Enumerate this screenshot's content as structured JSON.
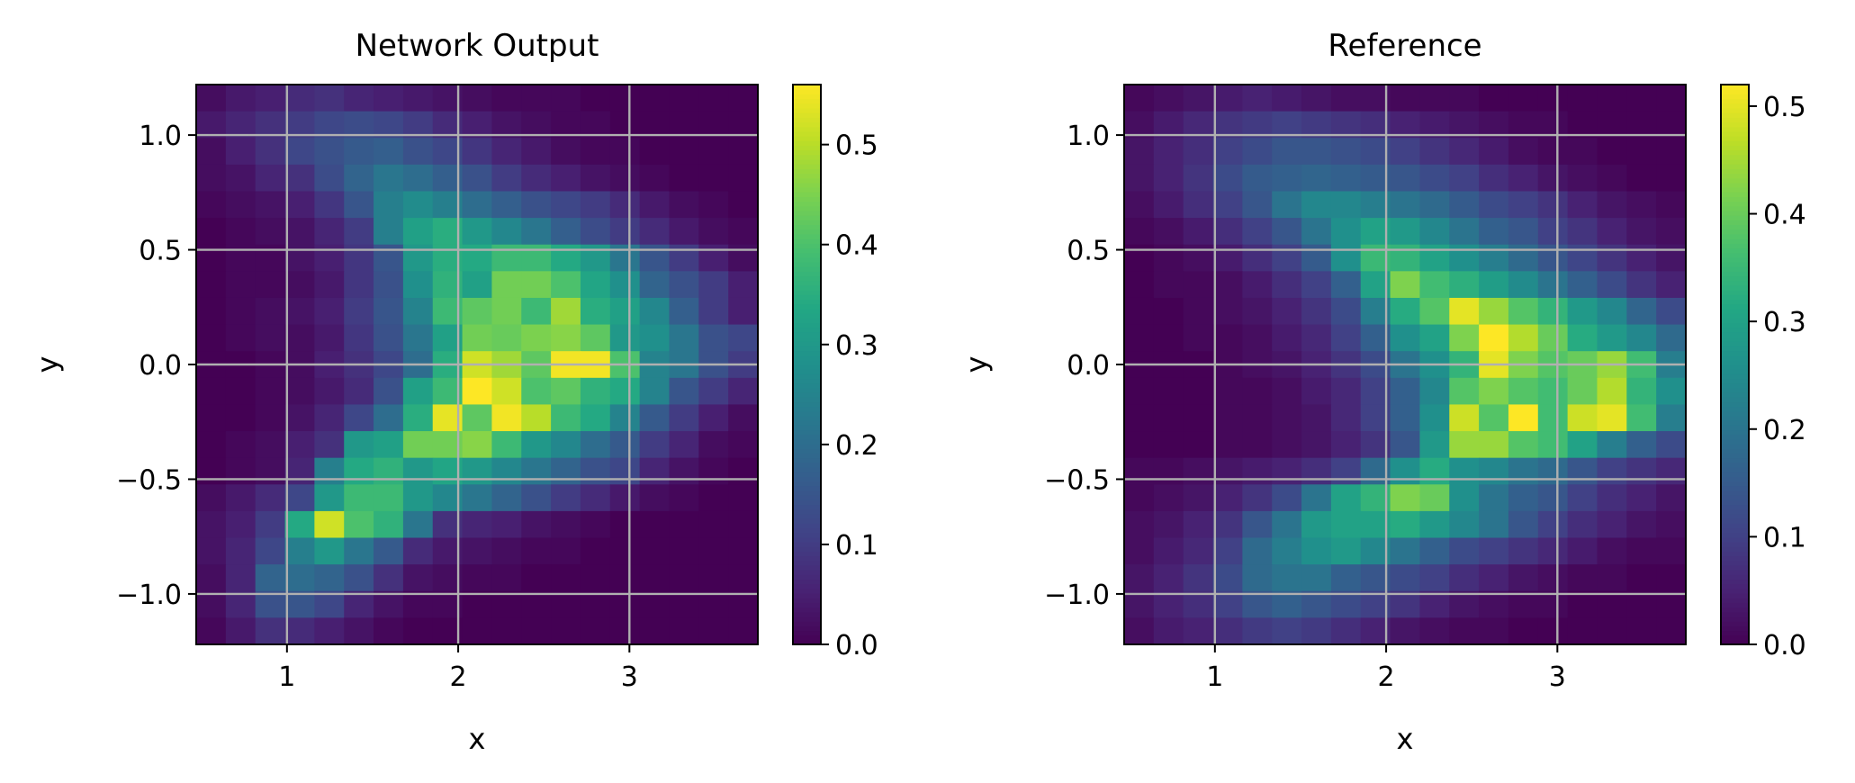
{
  "chart_data": [
    {
      "type": "heatmap",
      "title": "Network Output",
      "xlabel": "x",
      "ylabel": "y",
      "xlim": [
        0.47,
        3.75
      ],
      "ylim": [
        -1.22,
        1.22
      ],
      "xticks": [
        {
          "v": 1,
          "label": "1"
        },
        {
          "v": 2,
          "label": "2"
        },
        {
          "v": 3,
          "label": "3"
        }
      ],
      "yticks": [
        {
          "v": 1.0,
          "label": "1.0"
        },
        {
          "v": 0.5,
          "label": "0.5"
        },
        {
          "v": 0.0,
          "label": "0.0"
        },
        {
          "v": -0.5,
          "label": "−0.5"
        },
        {
          "v": -1.0,
          "label": "−1.0"
        }
      ],
      "grid": true,
      "colormap": "viridis",
      "colorbar": {
        "vmin": 0.0,
        "vmax": 0.56,
        "ticks": [
          {
            "v": 0.0,
            "label": "0.0"
          },
          {
            "v": 0.1,
            "label": "0.1"
          },
          {
            "v": 0.2,
            "label": "0.2"
          },
          {
            "v": 0.3,
            "label": "0.3"
          },
          {
            "v": 0.4,
            "label": "0.4"
          },
          {
            "v": 0.5,
            "label": "0.5"
          }
        ]
      },
      "rows_top_to_bottom": [
        [
          0.02,
          0.04,
          0.05,
          0.07,
          0.08,
          0.06,
          0.05,
          0.04,
          0.03,
          0.02,
          0.01,
          0.01,
          0.01,
          0.0,
          0.0,
          0.0,
          0.0,
          0.0,
          0.0
        ],
        [
          0.04,
          0.06,
          0.08,
          0.1,
          0.12,
          0.13,
          0.12,
          0.1,
          0.07,
          0.05,
          0.03,
          0.02,
          0.01,
          0.01,
          0.0,
          0.0,
          0.0,
          0.0,
          0.0
        ],
        [
          0.02,
          0.05,
          0.08,
          0.12,
          0.14,
          0.16,
          0.17,
          0.14,
          0.12,
          0.09,
          0.06,
          0.04,
          0.02,
          0.01,
          0.01,
          0.0,
          0.0,
          0.0,
          0.0
        ],
        [
          0.02,
          0.03,
          0.06,
          0.08,
          0.13,
          0.18,
          0.22,
          0.2,
          0.17,
          0.14,
          0.1,
          0.07,
          0.05,
          0.03,
          0.02,
          0.01,
          0.0,
          0.0,
          0.0
        ],
        [
          0.01,
          0.02,
          0.03,
          0.05,
          0.09,
          0.15,
          0.24,
          0.27,
          0.24,
          0.2,
          0.17,
          0.14,
          0.12,
          0.1,
          0.07,
          0.04,
          0.02,
          0.01,
          0.0
        ],
        [
          0.0,
          0.01,
          0.02,
          0.03,
          0.06,
          0.1,
          0.24,
          0.32,
          0.35,
          0.3,
          0.26,
          0.22,
          0.17,
          0.13,
          0.1,
          0.07,
          0.04,
          0.02,
          0.01
        ],
        [
          0.0,
          0.01,
          0.01,
          0.03,
          0.05,
          0.09,
          0.15,
          0.3,
          0.35,
          0.34,
          0.38,
          0.38,
          0.34,
          0.3,
          0.22,
          0.15,
          0.1,
          0.05,
          0.02
        ],
        [
          0.0,
          0.01,
          0.01,
          0.02,
          0.04,
          0.09,
          0.14,
          0.28,
          0.36,
          0.32,
          0.44,
          0.44,
          0.4,
          0.33,
          0.28,
          0.18,
          0.14,
          0.1,
          0.05
        ],
        [
          0.0,
          0.01,
          0.02,
          0.03,
          0.05,
          0.1,
          0.15,
          0.25,
          0.38,
          0.42,
          0.44,
          0.38,
          0.48,
          0.35,
          0.32,
          0.26,
          0.17,
          0.1,
          0.05
        ],
        [
          0.0,
          0.01,
          0.02,
          0.02,
          0.04,
          0.09,
          0.14,
          0.22,
          0.32,
          0.44,
          0.43,
          0.45,
          0.46,
          0.42,
          0.3,
          0.28,
          0.22,
          0.14,
          0.12
        ],
        [
          0.0,
          0.0,
          0.01,
          0.02,
          0.05,
          0.08,
          0.12,
          0.2,
          0.35,
          0.52,
          0.48,
          0.42,
          0.55,
          0.55,
          0.4,
          0.25,
          0.22,
          0.14,
          0.1
        ],
        [
          0.0,
          0.0,
          0.01,
          0.02,
          0.04,
          0.07,
          0.14,
          0.32,
          0.38,
          0.56,
          0.52,
          0.4,
          0.42,
          0.36,
          0.34,
          0.25,
          0.15,
          0.1,
          0.06
        ],
        [
          0.0,
          0.0,
          0.01,
          0.03,
          0.06,
          0.12,
          0.2,
          0.35,
          0.54,
          0.42,
          0.55,
          0.5,
          0.38,
          0.34,
          0.25,
          0.16,
          0.1,
          0.05,
          0.02
        ],
        [
          0.0,
          0.01,
          0.02,
          0.05,
          0.08,
          0.3,
          0.32,
          0.44,
          0.44,
          0.46,
          0.38,
          0.3,
          0.26,
          0.2,
          0.16,
          0.1,
          0.06,
          0.02,
          0.01
        ],
        [
          0.0,
          0.01,
          0.02,
          0.06,
          0.24,
          0.34,
          0.36,
          0.3,
          0.33,
          0.3,
          0.26,
          0.22,
          0.18,
          0.14,
          0.12,
          0.06,
          0.03,
          0.01,
          0.0
        ],
        [
          0.02,
          0.04,
          0.07,
          0.12,
          0.3,
          0.38,
          0.38,
          0.3,
          0.26,
          0.22,
          0.18,
          0.14,
          0.1,
          0.07,
          0.04,
          0.02,
          0.01,
          0.0,
          0.0
        ],
        [
          0.03,
          0.05,
          0.1,
          0.34,
          0.52,
          0.4,
          0.36,
          0.22,
          0.08,
          0.06,
          0.05,
          0.03,
          0.02,
          0.01,
          0.0,
          0.0,
          0.0,
          0.0,
          0.0
        ],
        [
          0.03,
          0.06,
          0.12,
          0.24,
          0.3,
          0.22,
          0.16,
          0.07,
          0.04,
          0.03,
          0.02,
          0.01,
          0.01,
          0.0,
          0.0,
          0.0,
          0.0,
          0.0,
          0.0
        ],
        [
          0.02,
          0.06,
          0.18,
          0.2,
          0.18,
          0.14,
          0.08,
          0.03,
          0.02,
          0.01,
          0.01,
          0.0,
          0.0,
          0.0,
          0.0,
          0.0,
          0.0,
          0.0,
          0.0
        ],
        [
          0.02,
          0.06,
          0.14,
          0.15,
          0.12,
          0.06,
          0.03,
          0.01,
          0.01,
          0.0,
          0.0,
          0.0,
          0.0,
          0.0,
          0.0,
          0.0,
          0.0,
          0.0,
          0.0
        ],
        [
          0.01,
          0.04,
          0.08,
          0.07,
          0.05,
          0.03,
          0.01,
          0.0,
          0.0,
          0.0,
          0.0,
          0.0,
          0.0,
          0.0,
          0.0,
          0.0,
          0.0,
          0.0,
          0.0
        ]
      ]
    },
    {
      "type": "heatmap",
      "title": "Reference",
      "xlabel": "x",
      "ylabel": "y",
      "xlim": [
        0.47,
        3.75
      ],
      "ylim": [
        -1.22,
        1.22
      ],
      "xticks": [
        {
          "v": 1,
          "label": "1"
        },
        {
          "v": 2,
          "label": "2"
        },
        {
          "v": 3,
          "label": "3"
        }
      ],
      "yticks": [
        {
          "v": 1.0,
          "label": "1.0"
        },
        {
          "v": 0.5,
          "label": "0.5"
        },
        {
          "v": 0.0,
          "label": "0.0"
        },
        {
          "v": -0.5,
          "label": "−0.5"
        },
        {
          "v": -1.0,
          "label": "−1.0"
        }
      ],
      "grid": true,
      "colormap": "viridis",
      "colorbar": {
        "vmin": 0.0,
        "vmax": 0.52,
        "ticks": [
          {
            "v": 0.0,
            "label": "0.0"
          },
          {
            "v": 0.1,
            "label": "0.1"
          },
          {
            "v": 0.2,
            "label": "0.2"
          },
          {
            "v": 0.3,
            "label": "0.3"
          },
          {
            "v": 0.4,
            "label": "0.4"
          },
          {
            "v": 0.5,
            "label": "0.5"
          }
        ]
      },
      "rows_top_to_bottom": [
        [
          0.01,
          0.02,
          0.03,
          0.04,
          0.05,
          0.04,
          0.03,
          0.02,
          0.02,
          0.01,
          0.01,
          0.01,
          0.0,
          0.0,
          0.0,
          0.0,
          0.0,
          0.0,
          0.0
        ],
        [
          0.02,
          0.04,
          0.06,
          0.08,
          0.09,
          0.1,
          0.09,
          0.08,
          0.07,
          0.05,
          0.04,
          0.03,
          0.02,
          0.01,
          0.01,
          0.0,
          0.0,
          0.0,
          0.0
        ],
        [
          0.03,
          0.05,
          0.07,
          0.1,
          0.12,
          0.14,
          0.14,
          0.13,
          0.12,
          0.1,
          0.08,
          0.06,
          0.04,
          0.02,
          0.01,
          0.01,
          0.0,
          0.0,
          0.0
        ],
        [
          0.03,
          0.05,
          0.08,
          0.12,
          0.15,
          0.16,
          0.17,
          0.16,
          0.15,
          0.14,
          0.12,
          0.1,
          0.07,
          0.05,
          0.03,
          0.02,
          0.01,
          0.0,
          0.0
        ],
        [
          0.02,
          0.04,
          0.07,
          0.1,
          0.14,
          0.2,
          0.24,
          0.24,
          0.22,
          0.2,
          0.18,
          0.15,
          0.12,
          0.1,
          0.08,
          0.05,
          0.03,
          0.02,
          0.01
        ],
        [
          0.01,
          0.02,
          0.04,
          0.07,
          0.1,
          0.14,
          0.2,
          0.26,
          0.3,
          0.28,
          0.24,
          0.2,
          0.16,
          0.14,
          0.1,
          0.08,
          0.05,
          0.03,
          0.02
        ],
        [
          0.0,
          0.01,
          0.02,
          0.04,
          0.07,
          0.1,
          0.15,
          0.26,
          0.35,
          0.34,
          0.3,
          0.26,
          0.22,
          0.18,
          0.14,
          0.11,
          0.08,
          0.05,
          0.03
        ],
        [
          0.0,
          0.01,
          0.01,
          0.02,
          0.04,
          0.07,
          0.1,
          0.16,
          0.3,
          0.42,
          0.36,
          0.33,
          0.29,
          0.25,
          0.2,
          0.16,
          0.12,
          0.08,
          0.05
        ],
        [
          0.0,
          0.0,
          0.01,
          0.02,
          0.03,
          0.05,
          0.08,
          0.12,
          0.22,
          0.32,
          0.38,
          0.5,
          0.44,
          0.38,
          0.34,
          0.28,
          0.24,
          0.17,
          0.12
        ],
        [
          0.0,
          0.0,
          0.01,
          0.01,
          0.02,
          0.04,
          0.06,
          0.1,
          0.16,
          0.26,
          0.3,
          0.42,
          0.52,
          0.46,
          0.4,
          0.32,
          0.28,
          0.24,
          0.18
        ],
        [
          0.0,
          0.0,
          0.0,
          0.01,
          0.02,
          0.03,
          0.05,
          0.08,
          0.12,
          0.2,
          0.26,
          0.34,
          0.5,
          0.42,
          0.38,
          0.4,
          0.44,
          0.36,
          0.22
        ],
        [
          0.0,
          0.0,
          0.0,
          0.01,
          0.01,
          0.02,
          0.04,
          0.06,
          0.1,
          0.16,
          0.24,
          0.38,
          0.42,
          0.38,
          0.36,
          0.4,
          0.46,
          0.34,
          0.26
        ],
        [
          0.0,
          0.0,
          0.0,
          0.01,
          0.01,
          0.02,
          0.03,
          0.06,
          0.1,
          0.16,
          0.26,
          0.48,
          0.38,
          0.52,
          0.36,
          0.48,
          0.5,
          0.36,
          0.22
        ],
        [
          0.0,
          0.0,
          0.0,
          0.01,
          0.01,
          0.02,
          0.03,
          0.05,
          0.08,
          0.14,
          0.28,
          0.44,
          0.44,
          0.38,
          0.36,
          0.3,
          0.22,
          0.16,
          0.12
        ],
        [
          0.01,
          0.01,
          0.02,
          0.03,
          0.04,
          0.05,
          0.07,
          0.1,
          0.18,
          0.26,
          0.32,
          0.26,
          0.24,
          0.2,
          0.18,
          0.14,
          0.1,
          0.08,
          0.06
        ],
        [
          0.01,
          0.02,
          0.03,
          0.05,
          0.08,
          0.12,
          0.2,
          0.3,
          0.34,
          0.42,
          0.4,
          0.26,
          0.2,
          0.16,
          0.14,
          0.1,
          0.07,
          0.05,
          0.03
        ],
        [
          0.02,
          0.03,
          0.05,
          0.08,
          0.14,
          0.2,
          0.28,
          0.3,
          0.3,
          0.32,
          0.28,
          0.24,
          0.2,
          0.14,
          0.1,
          0.07,
          0.05,
          0.03,
          0.02
        ],
        [
          0.02,
          0.04,
          0.06,
          0.1,
          0.18,
          0.22,
          0.26,
          0.28,
          0.24,
          0.2,
          0.16,
          0.12,
          0.1,
          0.08,
          0.06,
          0.04,
          0.02,
          0.01,
          0.01
        ],
        [
          0.03,
          0.05,
          0.08,
          0.12,
          0.18,
          0.2,
          0.2,
          0.16,
          0.14,
          0.12,
          0.1,
          0.07,
          0.05,
          0.03,
          0.02,
          0.01,
          0.01,
          0.0,
          0.0
        ],
        [
          0.03,
          0.05,
          0.07,
          0.1,
          0.14,
          0.16,
          0.14,
          0.12,
          0.1,
          0.08,
          0.05,
          0.03,
          0.02,
          0.01,
          0.01,
          0.0,
          0.0,
          0.0,
          0.0
        ],
        [
          0.02,
          0.04,
          0.05,
          0.07,
          0.09,
          0.1,
          0.09,
          0.07,
          0.05,
          0.03,
          0.02,
          0.01,
          0.01,
          0.0,
          0.0,
          0.0,
          0.0,
          0.0,
          0.0
        ]
      ]
    }
  ]
}
